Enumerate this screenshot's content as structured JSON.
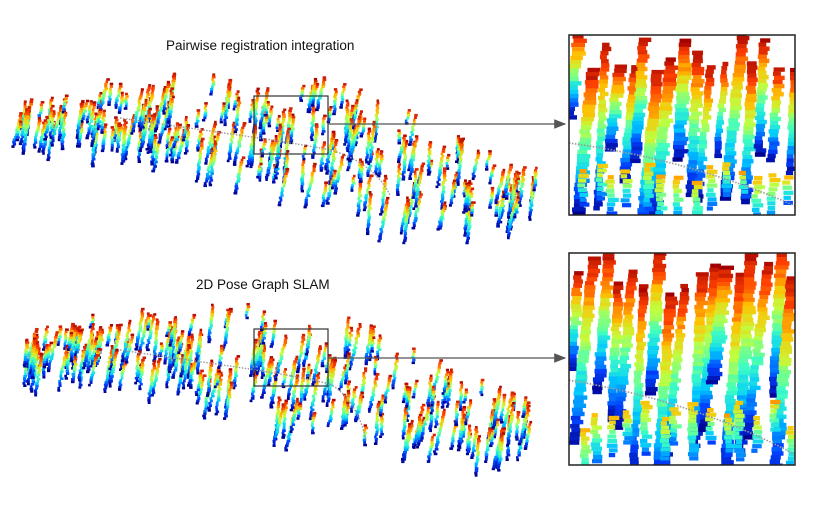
{
  "panels": [
    {
      "id": "top",
      "title": "Pairwise registration integration"
    },
    {
      "id": "bottom",
      "title": "2D Pose Graph SLAM"
    }
  ],
  "colormap": [
    "#00008f",
    "#0040ff",
    "#00c8ff",
    "#40ffbf",
    "#bfff40",
    "#ffbf00",
    "#ff4000",
    "#a00000"
  ],
  "colors": {
    "frame": "#222222",
    "arrow": "#555555",
    "trajectory": "#9a9a9a",
    "background": "#ffffff"
  }
}
